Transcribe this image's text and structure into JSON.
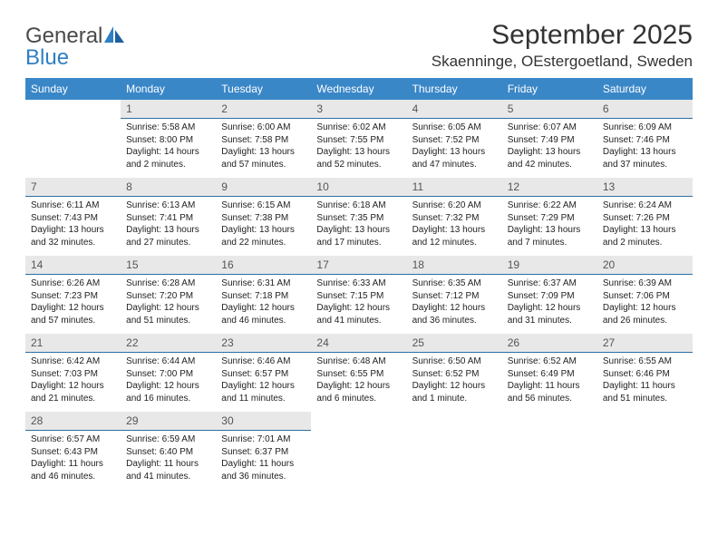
{
  "logo": {
    "word1": "General",
    "word2": "Blue"
  },
  "title": "September 2025",
  "location": "Skaenninge, OEstergoetland, Sweden",
  "colors": {
    "header_bg": "#3a87c8",
    "header_text": "#ffffff",
    "daynum_bg": "#e8e8e8",
    "daynum_border": "#2f6fa3",
    "logo_gray": "#4a4a4a",
    "logo_blue": "#2f7fc2"
  },
  "weekdays": [
    "Sunday",
    "Monday",
    "Tuesday",
    "Wednesday",
    "Thursday",
    "Friday",
    "Saturday"
  ],
  "weeks": [
    {
      "nums": [
        "",
        "1",
        "2",
        "3",
        "4",
        "5",
        "6"
      ],
      "cells": [
        {
          "empty": true
        },
        {
          "sunrise": "Sunrise: 5:58 AM",
          "sunset": "Sunset: 8:00 PM",
          "day1": "Daylight: 14 hours",
          "day2": "and 2 minutes."
        },
        {
          "sunrise": "Sunrise: 6:00 AM",
          "sunset": "Sunset: 7:58 PM",
          "day1": "Daylight: 13 hours",
          "day2": "and 57 minutes."
        },
        {
          "sunrise": "Sunrise: 6:02 AM",
          "sunset": "Sunset: 7:55 PM",
          "day1": "Daylight: 13 hours",
          "day2": "and 52 minutes."
        },
        {
          "sunrise": "Sunrise: 6:05 AM",
          "sunset": "Sunset: 7:52 PM",
          "day1": "Daylight: 13 hours",
          "day2": "and 47 minutes."
        },
        {
          "sunrise": "Sunrise: 6:07 AM",
          "sunset": "Sunset: 7:49 PM",
          "day1": "Daylight: 13 hours",
          "day2": "and 42 minutes."
        },
        {
          "sunrise": "Sunrise: 6:09 AM",
          "sunset": "Sunset: 7:46 PM",
          "day1": "Daylight: 13 hours",
          "day2": "and 37 minutes."
        }
      ]
    },
    {
      "nums": [
        "7",
        "8",
        "9",
        "10",
        "11",
        "12",
        "13"
      ],
      "cells": [
        {
          "sunrise": "Sunrise: 6:11 AM",
          "sunset": "Sunset: 7:43 PM",
          "day1": "Daylight: 13 hours",
          "day2": "and 32 minutes."
        },
        {
          "sunrise": "Sunrise: 6:13 AM",
          "sunset": "Sunset: 7:41 PM",
          "day1": "Daylight: 13 hours",
          "day2": "and 27 minutes."
        },
        {
          "sunrise": "Sunrise: 6:15 AM",
          "sunset": "Sunset: 7:38 PM",
          "day1": "Daylight: 13 hours",
          "day2": "and 22 minutes."
        },
        {
          "sunrise": "Sunrise: 6:18 AM",
          "sunset": "Sunset: 7:35 PM",
          "day1": "Daylight: 13 hours",
          "day2": "and 17 minutes."
        },
        {
          "sunrise": "Sunrise: 6:20 AM",
          "sunset": "Sunset: 7:32 PM",
          "day1": "Daylight: 13 hours",
          "day2": "and 12 minutes."
        },
        {
          "sunrise": "Sunrise: 6:22 AM",
          "sunset": "Sunset: 7:29 PM",
          "day1": "Daylight: 13 hours",
          "day2": "and 7 minutes."
        },
        {
          "sunrise": "Sunrise: 6:24 AM",
          "sunset": "Sunset: 7:26 PM",
          "day1": "Daylight: 13 hours",
          "day2": "and 2 minutes."
        }
      ]
    },
    {
      "nums": [
        "14",
        "15",
        "16",
        "17",
        "18",
        "19",
        "20"
      ],
      "cells": [
        {
          "sunrise": "Sunrise: 6:26 AM",
          "sunset": "Sunset: 7:23 PM",
          "day1": "Daylight: 12 hours",
          "day2": "and 57 minutes."
        },
        {
          "sunrise": "Sunrise: 6:28 AM",
          "sunset": "Sunset: 7:20 PM",
          "day1": "Daylight: 12 hours",
          "day2": "and 51 minutes."
        },
        {
          "sunrise": "Sunrise: 6:31 AM",
          "sunset": "Sunset: 7:18 PM",
          "day1": "Daylight: 12 hours",
          "day2": "and 46 minutes."
        },
        {
          "sunrise": "Sunrise: 6:33 AM",
          "sunset": "Sunset: 7:15 PM",
          "day1": "Daylight: 12 hours",
          "day2": "and 41 minutes."
        },
        {
          "sunrise": "Sunrise: 6:35 AM",
          "sunset": "Sunset: 7:12 PM",
          "day1": "Daylight: 12 hours",
          "day2": "and 36 minutes."
        },
        {
          "sunrise": "Sunrise: 6:37 AM",
          "sunset": "Sunset: 7:09 PM",
          "day1": "Daylight: 12 hours",
          "day2": "and 31 minutes."
        },
        {
          "sunrise": "Sunrise: 6:39 AM",
          "sunset": "Sunset: 7:06 PM",
          "day1": "Daylight: 12 hours",
          "day2": "and 26 minutes."
        }
      ]
    },
    {
      "nums": [
        "21",
        "22",
        "23",
        "24",
        "25",
        "26",
        "27"
      ],
      "cells": [
        {
          "sunrise": "Sunrise: 6:42 AM",
          "sunset": "Sunset: 7:03 PM",
          "day1": "Daylight: 12 hours",
          "day2": "and 21 minutes."
        },
        {
          "sunrise": "Sunrise: 6:44 AM",
          "sunset": "Sunset: 7:00 PM",
          "day1": "Daylight: 12 hours",
          "day2": "and 16 minutes."
        },
        {
          "sunrise": "Sunrise: 6:46 AM",
          "sunset": "Sunset: 6:57 PM",
          "day1": "Daylight: 12 hours",
          "day2": "and 11 minutes."
        },
        {
          "sunrise": "Sunrise: 6:48 AM",
          "sunset": "Sunset: 6:55 PM",
          "day1": "Daylight: 12 hours",
          "day2": "and 6 minutes."
        },
        {
          "sunrise": "Sunrise: 6:50 AM",
          "sunset": "Sunset: 6:52 PM",
          "day1": "Daylight: 12 hours",
          "day2": "and 1 minute."
        },
        {
          "sunrise": "Sunrise: 6:52 AM",
          "sunset": "Sunset: 6:49 PM",
          "day1": "Daylight: 11 hours",
          "day2": "and 56 minutes."
        },
        {
          "sunrise": "Sunrise: 6:55 AM",
          "sunset": "Sunset: 6:46 PM",
          "day1": "Daylight: 11 hours",
          "day2": "and 51 minutes."
        }
      ]
    },
    {
      "nums": [
        "28",
        "29",
        "30",
        "",
        "",
        "",
        ""
      ],
      "cells": [
        {
          "sunrise": "Sunrise: 6:57 AM",
          "sunset": "Sunset: 6:43 PM",
          "day1": "Daylight: 11 hours",
          "day2": "and 46 minutes."
        },
        {
          "sunrise": "Sunrise: 6:59 AM",
          "sunset": "Sunset: 6:40 PM",
          "day1": "Daylight: 11 hours",
          "day2": "and 41 minutes."
        },
        {
          "sunrise": "Sunrise: 7:01 AM",
          "sunset": "Sunset: 6:37 PM",
          "day1": "Daylight: 11 hours",
          "day2": "and 36 minutes."
        },
        {
          "empty": true
        },
        {
          "empty": true
        },
        {
          "empty": true
        },
        {
          "empty": true
        }
      ]
    }
  ]
}
